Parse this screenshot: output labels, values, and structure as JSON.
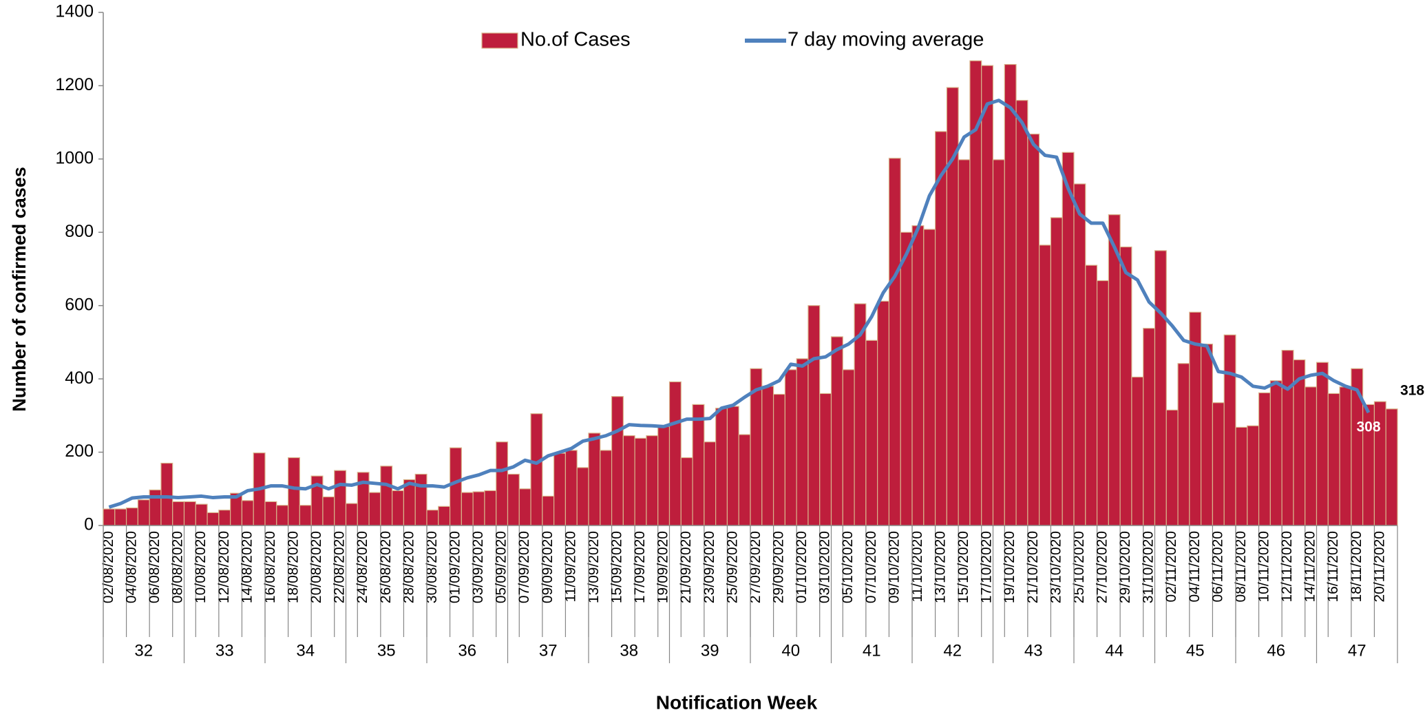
{
  "chart_data": {
    "type": "bar",
    "y_label": "Number of confirmed cases",
    "x_label": "Notification Week",
    "ylim": [
      0,
      1400
    ],
    "yticks": [
      0,
      200,
      400,
      600,
      800,
      1000,
      1200,
      1400
    ],
    "legend": "top",
    "categories": [
      "02/08/2020",
      null,
      "04/08/2020",
      null,
      "06/08/2020",
      null,
      "08/08/2020",
      null,
      "10/08/2020",
      null,
      "12/08/2020",
      null,
      "14/08/2020",
      null,
      "16/08/2020",
      null,
      "18/08/2020",
      null,
      "20/08/2020",
      null,
      "22/08/2020",
      null,
      "24/08/2020",
      null,
      "26/08/2020",
      null,
      "28/08/2020",
      null,
      "30/08/2020",
      null,
      "01/09/2020",
      null,
      "03/09/2020",
      null,
      "05/09/2020",
      null,
      "07/09/2020",
      null,
      "09/09/2020",
      null,
      "11/09/2020",
      null,
      "13/09/2020",
      null,
      "15/09/2020",
      null,
      "17/09/2020",
      null,
      "19/09/2020",
      null,
      "21/09/2020",
      null,
      "23/09/2020",
      null,
      "25/09/2020",
      null,
      "27/09/2020",
      null,
      "29/09/2020",
      null,
      "01/10/2020",
      null,
      "03/10/2020",
      null,
      "05/10/2020",
      null,
      "07/10/2020",
      null,
      "09/10/2020",
      null,
      "11/10/2020",
      null,
      "13/10/2020",
      null,
      "15/10/2020",
      null,
      "17/10/2020",
      null,
      "19/10/2020",
      null,
      "21/10/2020",
      null,
      "23/10/2020",
      null,
      "25/10/2020",
      null,
      "27/10/2020",
      null,
      "29/10/2020",
      null,
      "31/10/2020",
      null,
      "02/11/2020",
      null,
      "04/11/2020",
      null,
      "06/11/2020",
      null,
      "08/11/2020",
      null,
      "10/11/2020",
      null,
      "12/11/2020",
      null,
      "14/11/2020",
      null,
      "16/11/2020",
      null,
      "18/11/2020",
      null,
      "20/11/2020",
      null
    ],
    "weeks": [
      "32",
      "33",
      "34",
      "35",
      "36",
      "37",
      "38",
      "39",
      "40",
      "41",
      "42",
      "43",
      "44",
      "45",
      "46",
      "47"
    ],
    "series": [
      {
        "name": "No.of Cases",
        "type": "bar",
        "color": "#be1e3c",
        "edge_color": "#d8b48a",
        "label_last": true,
        "values": [
          45,
          45,
          48,
          70,
          97,
          170,
          65,
          65,
          58,
          35,
          42,
          88,
          68,
          198,
          65,
          55,
          185,
          55,
          135,
          78,
          150,
          60,
          145,
          90,
          162,
          95,
          125,
          140,
          42,
          52,
          212,
          90,
          92,
          95,
          228,
          140,
          100,
          305,
          80,
          197,
          205,
          158,
          252,
          205,
          352,
          245,
          238,
          245,
          270,
          392,
          185,
          330,
          228,
          320,
          325,
          248,
          428,
          380,
          358,
          425,
          455,
          600,
          360,
          515,
          425,
          605,
          505,
          612,
          1002,
          800,
          818,
          808,
          1075,
          1195,
          998,
          1268,
          1255,
          998,
          1258,
          1160,
          1068,
          765,
          840,
          1018,
          932,
          710,
          668,
          848,
          760,
          405,
          538,
          750,
          315,
          442,
          582,
          495,
          335,
          520,
          268,
          272,
          362,
          395,
          478,
          452,
          378,
          445,
          360,
          378,
          428,
          330,
          338,
          318
        ]
      },
      {
        "name": "7 day moving average",
        "type": "line",
        "color": "#4f81bd",
        "label_last": true,
        "values": [
          50,
          60,
          75,
          78,
          78,
          78,
          76,
          78,
          80,
          76,
          78,
          78,
          95,
          100,
          108,
          108,
          102,
          100,
          112,
          100,
          112,
          110,
          118,
          115,
          112,
          100,
          115,
          108,
          108,
          105,
          118,
          130,
          138,
          150,
          150,
          160,
          178,
          170,
          190,
          200,
          210,
          230,
          237,
          245,
          258,
          275,
          273,
          272,
          270,
          280,
          290,
          290,
          292,
          320,
          328,
          350,
          370,
          380,
          395,
          440,
          435,
          455,
          460,
          480,
          495,
          520,
          570,
          635,
          680,
          740,
          810,
          900,
          955,
          1000,
          1060,
          1080,
          1150,
          1160,
          1140,
          1100,
          1040,
          1010,
          1005,
          920,
          850,
          825,
          825,
          760,
          690,
          670,
          610,
          580,
          545,
          505,
          495,
          490,
          420,
          415,
          405,
          380,
          375,
          390,
          372,
          400,
          410,
          415,
          395,
          380,
          370,
          308,
          null,
          null
        ]
      }
    ]
  }
}
